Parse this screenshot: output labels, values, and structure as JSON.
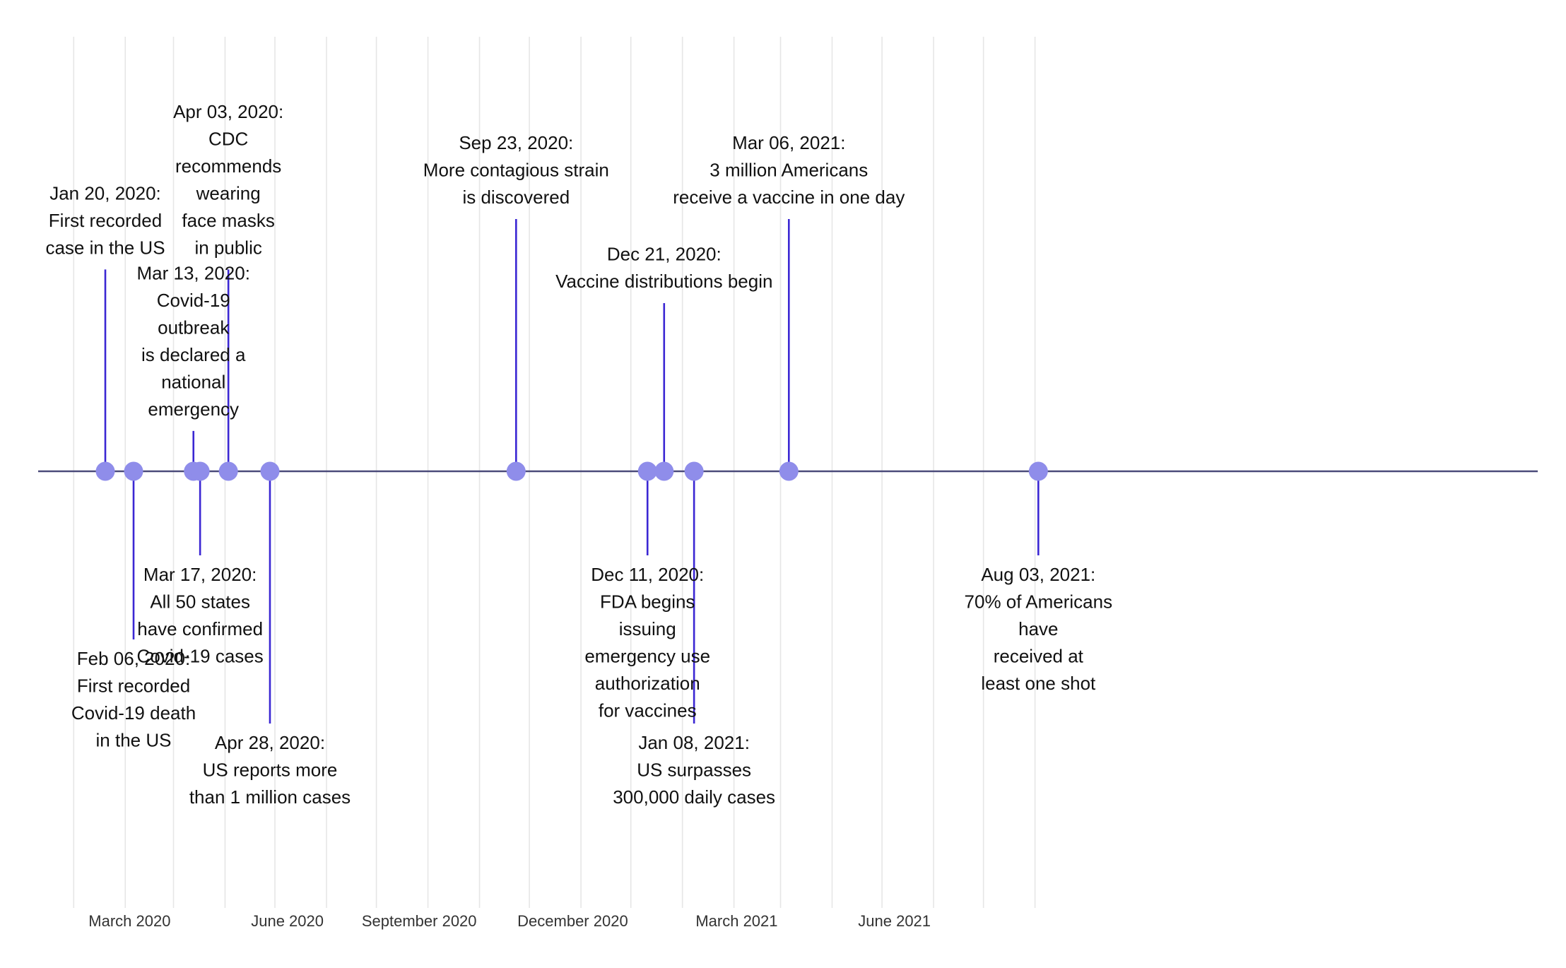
{
  "chart_data": {
    "type": "timeline",
    "title": "",
    "xlabel": "",
    "ylabel": "",
    "xlim": [
      "2020-01-01",
      "2021-09-01"
    ],
    "grid": true,
    "colors": {
      "stem": "#3b27d3",
      "marker": "#8f8dea",
      "axis": "#4a4a7a",
      "grid": "#e6e6e6"
    },
    "x_ticks": [
      {
        "date": "2020-03-01",
        "label": "March 2020"
      },
      {
        "date": "2020-06-01",
        "label": "June 2020"
      },
      {
        "date": "2020-09-01",
        "label": "September 2020"
      },
      {
        "date": "2020-12-01",
        "label": "December 2020"
      },
      {
        "date": "2021-03-01",
        "label": "March 2021"
      },
      {
        "date": "2021-06-01",
        "label": "June 2021"
      }
    ],
    "events": [
      {
        "date": "2020-01-20",
        "level": 6.0,
        "lines": [
          "Jan 20, 2020:",
          "First recorded",
          "case in the US"
        ]
      },
      {
        "date": "2020-02-06",
        "level": -5.0,
        "lines": [
          "Feb 06, 2020:",
          "First recorded",
          "Covid-19 death",
          "in the US"
        ]
      },
      {
        "date": "2020-03-13",
        "level": 1.2,
        "lines": [
          "Mar 13, 2020:",
          "Covid-19",
          "outbreak",
          "is declared a",
          "national",
          "emergency"
        ]
      },
      {
        "date": "2020-03-17",
        "level": -2.5,
        "lines": [
          "Mar 17, 2020:",
          "All 50 states",
          "have confirmed",
          "Covid-19 cases"
        ]
      },
      {
        "date": "2020-04-03",
        "level": 6.0,
        "lines": [
          "Apr 03, 2020:",
          "CDC",
          "recommends",
          "wearing",
          "face masks",
          "in public"
        ]
      },
      {
        "date": "2020-04-28",
        "level": -7.5,
        "lines": [
          "Apr 28, 2020:",
          "US reports more",
          "than 1 million cases"
        ]
      },
      {
        "date": "2020-09-23",
        "level": 7.5,
        "lines": [
          "Sep 23, 2020:",
          "More contagious strain",
          "is discovered"
        ]
      },
      {
        "date": "2020-12-11",
        "level": -2.5,
        "lines": [
          "Dec 11, 2020:",
          "FDA begins",
          "issuing",
          "emergency use",
          "authorization",
          "for vaccines"
        ]
      },
      {
        "date": "2020-12-21",
        "level": 5.0,
        "lines": [
          "Dec 21, 2020:",
          "Vaccine distributions begin"
        ]
      },
      {
        "date": "2021-01-08",
        "level": -7.5,
        "lines": [
          "Jan 08, 2021:",
          "US surpasses",
          "300,000 daily cases"
        ]
      },
      {
        "date": "2021-03-06",
        "level": 7.5,
        "lines": [
          "Mar 06, 2021:",
          "3 million Americans",
          "receive a vaccine in one day"
        ]
      },
      {
        "date": "2021-08-03",
        "level": -2.5,
        "lines": [
          "Aug 03, 2021:",
          "70% of Americans",
          "have",
          "received at",
          "least one shot"
        ]
      }
    ]
  }
}
